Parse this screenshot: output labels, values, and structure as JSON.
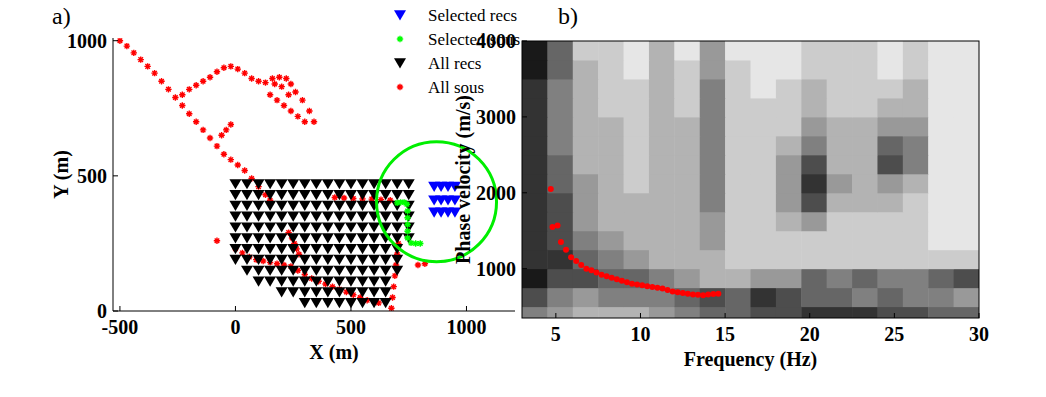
{
  "chart_data": [
    {
      "type": "scatter",
      "panel_label": "a)",
      "x_label": "X (m)",
      "y_label": "Y (m)",
      "xlim": [
        -530,
        1210
      ],
      "ylim": [
        0,
        1010
      ],
      "xticks": [
        -500,
        0,
        500,
        1000
      ],
      "yticks": [
        0,
        500,
        1000
      ],
      "legend": "upper right",
      "series": [
        {
          "name": "Selected recs",
          "color": "#0000ff",
          "marker": "triangle-down",
          "x": [
            860,
            890,
            920,
            950,
            860,
            890,
            920,
            950,
            860,
            890,
            920,
            950
          ],
          "values": [
            460,
            460,
            460,
            460,
            410,
            410,
            410,
            410,
            365,
            365,
            365,
            365
          ]
        },
        {
          "name": "Selected sous",
          "color": "#00ff00",
          "marker": "asterisk",
          "x": [
            700,
            715,
            730,
            742,
            745,
            745,
            745,
            745,
            745,
            760,
            780,
            800
          ],
          "values": [
            400,
            402,
            402,
            395,
            370,
            345,
            320,
            295,
            270,
            252,
            250,
            250
          ]
        },
        {
          "name": "All recs",
          "color": "#000000",
          "marker": "triangle-down",
          "x": [
            0,
            50,
            100,
            150,
            200,
            250,
            300,
            350,
            400,
            450,
            500,
            550,
            600,
            650,
            700,
            750,
            0,
            50,
            100,
            150,
            200,
            250,
            300,
            350,
            400,
            450,
            500,
            550,
            600,
            650,
            700,
            750,
            0,
            50,
            100,
            150,
            200,
            250,
            300,
            350,
            400,
            450,
            500,
            550,
            600,
            650,
            700,
            750,
            0,
            50,
            100,
            150,
            200,
            250,
            300,
            350,
            400,
            450,
            500,
            550,
            600,
            650,
            700,
            750,
            0,
            50,
            100,
            150,
            200,
            250,
            300,
            350,
            400,
            450,
            500,
            550,
            600,
            650,
            700,
            750,
            0,
            50,
            100,
            150,
            200,
            250,
            300,
            350,
            400,
            450,
            500,
            550,
            600,
            650,
            700,
            750,
            0,
            50,
            100,
            150,
            200,
            250,
            300,
            350,
            400,
            450,
            500,
            550,
            600,
            650,
            700,
            0,
            50,
            100,
            150,
            200,
            250,
            300,
            350,
            400,
            450,
            500,
            550,
            600,
            650,
            700,
            50,
            100,
            150,
            200,
            250,
            300,
            350,
            400,
            450,
            500,
            550,
            600,
            650,
            700,
            100,
            150,
            200,
            250,
            300,
            350,
            400,
            450,
            500,
            550,
            600,
            650,
            200,
            250,
            300,
            350,
            400,
            450,
            500,
            550,
            600,
            650,
            300,
            350,
            400,
            450,
            500,
            550,
            600,
            650
          ],
          "values": [
            470,
            470,
            470,
            470,
            470,
            470,
            470,
            470,
            470,
            470,
            470,
            470,
            470,
            470,
            470,
            470,
            430,
            430,
            430,
            430,
            430,
            430,
            430,
            430,
            430,
            430,
            430,
            430,
            430,
            430,
            430,
            430,
            390,
            390,
            390,
            390,
            390,
            390,
            390,
            390,
            390,
            390,
            390,
            390,
            390,
            390,
            390,
            390,
            350,
            350,
            350,
            350,
            350,
            350,
            350,
            350,
            350,
            350,
            350,
            350,
            350,
            350,
            350,
            350,
            310,
            310,
            310,
            310,
            310,
            310,
            310,
            310,
            310,
            310,
            310,
            310,
            310,
            310,
            310,
            310,
            270,
            270,
            270,
            270,
            270,
            270,
            270,
            270,
            270,
            270,
            270,
            270,
            270,
            270,
            270,
            270,
            230,
            230,
            230,
            230,
            230,
            230,
            230,
            230,
            230,
            230,
            230,
            230,
            230,
            230,
            230,
            190,
            190,
            190,
            190,
            190,
            190,
            190,
            190,
            190,
            190,
            190,
            190,
            190,
            190,
            190,
            150,
            150,
            150,
            150,
            150,
            150,
            150,
            150,
            150,
            150,
            150,
            150,
            150,
            150,
            110,
            110,
            110,
            110,
            110,
            110,
            110,
            110,
            110,
            110,
            110,
            110,
            70,
            70,
            70,
            70,
            70,
            70,
            70,
            70,
            70,
            70,
            30,
            30,
            30,
            30,
            30,
            30,
            30,
            30
          ]
        },
        {
          "name": "All sous",
          "color": "#ff0000",
          "marker": "asterisk",
          "x": [
            -500,
            -470,
            -440,
            -410,
            -380,
            -350,
            -320,
            -290,
            -260,
            -230,
            -200,
            -170,
            -140,
            -110,
            -80,
            -50,
            -20,
            10,
            40,
            70,
            100,
            130,
            160,
            190,
            220,
            240,
            260,
            290,
            320,
            340,
            150,
            180,
            210,
            240,
            270,
            300,
            170,
            200,
            230,
            -230,
            -200,
            -170,
            -140,
            -110,
            -80,
            -50,
            -20,
            10,
            40,
            70,
            100,
            130,
            150,
            -60,
            -40,
            -20,
            230,
            245,
            255,
            265,
            275,
            -80,
            430,
            470,
            510,
            550,
            590,
            630,
            670,
            0,
            30,
            60,
            90,
            120,
            150,
            180,
            210,
            240,
            270,
            300,
            330,
            360,
            390,
            420,
            450,
            480,
            510,
            540,
            570,
            600,
            620,
            675,
            680,
            685,
            690,
            695,
            700,
            705,
            790,
            820
          ],
          "values": [
            1000,
            980,
            955,
            930,
            905,
            880,
            850,
            820,
            790,
            800,
            820,
            835,
            850,
            865,
            885,
            900,
            905,
            895,
            880,
            860,
            850,
            845,
            860,
            865,
            860,
            840,
            810,
            780,
            740,
            700,
            800,
            780,
            760,
            740,
            720,
            700,
            840,
            830,
            800,
            760,
            730,
            700,
            670,
            640,
            610,
            580,
            560,
            540,
            520,
            490,
            460,
            430,
            410,
            650,
            670,
            690,
            290,
            270,
            250,
            230,
            210,
            260,
            420,
            418,
            416,
            415,
            414,
            412,
            410,
            230,
            215,
            200,
            190,
            185,
            180,
            175,
            170,
            165,
            150,
            135,
            120,
            110,
            100,
            90,
            80,
            70,
            60,
            50,
            40,
            35,
            30,
            10,
            50,
            90,
            130,
            170,
            210,
            250,
            170,
            175
          ]
        }
      ]
    },
    {
      "type": "heatmap",
      "panel_label": "b)",
      "x_label": "Frequency (Hz)",
      "y_label": "Phase velocity (m/s)",
      "xlim": [
        3,
        30
      ],
      "ylim": [
        350,
        4000
      ],
      "xticks": [
        5,
        10,
        15,
        20,
        25,
        30
      ],
      "yticks": [
        1000,
        2000,
        3000,
        4000
      ],
      "x_edges": [
        3,
        4.5,
        6,
        7.5,
        9,
        10.5,
        12,
        13.5,
        15,
        16.5,
        18,
        19.5,
        21,
        22.5,
        24,
        25.5,
        27,
        28.5,
        30
      ],
      "y_edges": [
        350,
        500,
        750,
        1000,
        1250,
        1500,
        1750,
        2000,
        2250,
        2500,
        2750,
        3000,
        3250,
        3500,
        3750,
        4000
      ],
      "cell_range": [
        0,
        1
      ],
      "cells": [
        [
          0.5,
          0.4,
          0.3,
          0.3,
          0.3,
          0.4,
          0.5,
          0.6,
          0.6,
          0.7,
          0.7,
          0.8,
          0.8,
          0.8,
          0.7,
          0.7,
          0.6,
          0.6
        ],
        [
          0.7,
          0.5,
          0.4,
          0.5,
          0.5,
          0.5,
          0.6,
          0.7,
          0.6,
          0.8,
          0.7,
          0.6,
          0.6,
          0.5,
          0.6,
          0.5,
          0.5,
          0.4
        ],
        [
          0.9,
          0.7,
          0.7,
          0.6,
          0.6,
          0.5,
          0.4,
          0.3,
          0.3,
          0.4,
          0.4,
          0.6,
          0.5,
          0.6,
          0.5,
          0.5,
          0.6,
          0.7
        ],
        [
          0.8,
          0.8,
          0.6,
          0.5,
          0.4,
          0.3,
          0.3,
          0.3,
          0.2,
          0.2,
          0.2,
          0.2,
          0.2,
          0.2,
          0.2,
          0.2,
          0.2,
          0.2
        ],
        [
          0.8,
          0.7,
          0.5,
          0.4,
          0.3,
          0.3,
          0.3,
          0.4,
          0.2,
          0.2,
          0.2,
          0.2,
          0.2,
          0.2,
          0.2,
          0.2,
          0.1,
          0.1
        ],
        [
          0.8,
          0.7,
          0.4,
          0.3,
          0.3,
          0.3,
          0.3,
          0.4,
          0.2,
          0.2,
          0.3,
          0.4,
          0.2,
          0.2,
          0.2,
          0.2,
          0.1,
          0.1
        ],
        [
          0.8,
          0.7,
          0.4,
          0.3,
          0.3,
          0.3,
          0.3,
          0.5,
          0.2,
          0.2,
          0.4,
          0.7,
          0.3,
          0.3,
          0.3,
          0.2,
          0.1,
          0.1
        ],
        [
          0.8,
          0.6,
          0.4,
          0.3,
          0.2,
          0.3,
          0.3,
          0.5,
          0.2,
          0.2,
          0.4,
          0.8,
          0.4,
          0.3,
          0.4,
          0.3,
          0.1,
          0.1
        ],
        [
          0.8,
          0.6,
          0.3,
          0.3,
          0.2,
          0.3,
          0.3,
          0.5,
          0.2,
          0.2,
          0.4,
          0.7,
          0.3,
          0.3,
          0.7,
          0.5,
          0.1,
          0.1
        ],
        [
          0.8,
          0.5,
          0.3,
          0.3,
          0.2,
          0.3,
          0.3,
          0.5,
          0.2,
          0.2,
          0.3,
          0.5,
          0.3,
          0.3,
          0.6,
          0.5,
          0.1,
          0.1
        ],
        [
          0.8,
          0.5,
          0.3,
          0.3,
          0.2,
          0.3,
          0.3,
          0.5,
          0.2,
          0.2,
          0.2,
          0.4,
          0.3,
          0.3,
          0.4,
          0.4,
          0.1,
          0.1
        ],
        [
          0.8,
          0.5,
          0.3,
          0.2,
          0.2,
          0.3,
          0.2,
          0.5,
          0.2,
          0.2,
          0.2,
          0.3,
          0.2,
          0.2,
          0.3,
          0.3,
          0.1,
          0.1
        ],
        [
          0.8,
          0.5,
          0.3,
          0.2,
          0.2,
          0.3,
          0.2,
          0.5,
          0.2,
          0.1,
          0.2,
          0.3,
          0.2,
          0.2,
          0.2,
          0.3,
          0.1,
          0.1
        ],
        [
          0.9,
          0.6,
          0.3,
          0.2,
          0.1,
          0.3,
          0.2,
          0.4,
          0.2,
          0.1,
          0.1,
          0.2,
          0.2,
          0.2,
          0.1,
          0.2,
          0.1,
          0.1
        ],
        [
          0.9,
          0.6,
          0.2,
          0.2,
          0.1,
          0.3,
          0.1,
          0.4,
          0.1,
          0.1,
          0.1,
          0.2,
          0.2,
          0.2,
          0.1,
          0.2,
          0.1,
          0.1
        ]
      ],
      "series": [
        {
          "type": "scatter",
          "color": "#ff0000",
          "marker": "circle",
          "x": [
            4.7,
            4.8,
            5.1,
            5.3,
            5.6,
            5.9,
            6.2,
            6.5,
            6.8,
            7.1,
            7.4,
            7.7,
            8.0,
            8.3,
            8.6,
            8.9,
            9.2,
            9.5,
            9.8,
            10.1,
            10.4,
            10.7,
            11.0,
            11.3,
            11.6,
            11.9,
            12.2,
            12.5,
            12.8,
            13.1,
            13.4,
            13.7,
            14.0,
            14.3,
            14.6
          ],
          "values": [
            2050,
            1550,
            1570,
            1350,
            1250,
            1150,
            1100,
            1050,
            1000,
            980,
            950,
            920,
            900,
            880,
            860,
            840,
            820,
            800,
            790,
            780,
            770,
            760,
            750,
            740,
            720,
            700,
            690,
            680,
            670,
            660,
            655,
            650,
            660,
            665,
            670
          ]
        }
      ]
    }
  ]
}
